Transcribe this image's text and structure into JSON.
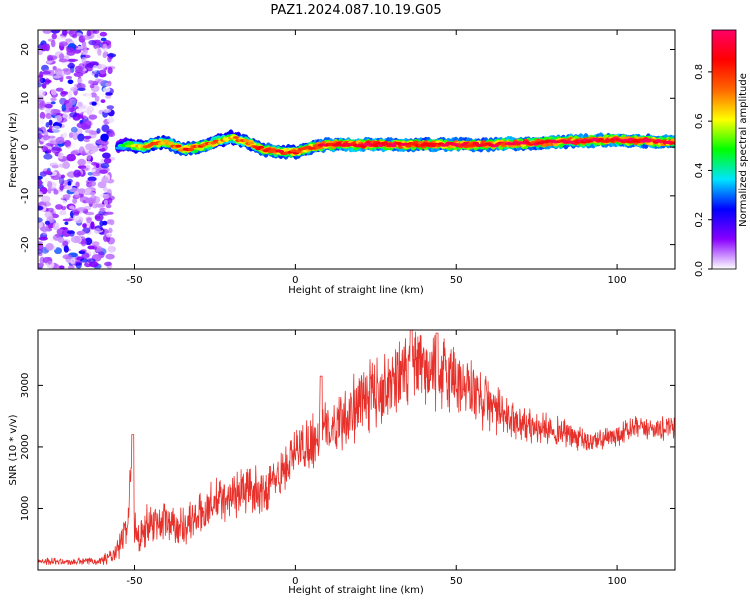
{
  "title": "PAZ1.2024.087.10.19.G05",
  "colorbar": {
    "label": "Normalized spectral amplitude",
    "ticks": [
      "0.0",
      "0.2",
      "0.4",
      "0.6",
      "0.8"
    ],
    "tick_values": [
      0.0,
      0.2,
      0.4,
      0.6,
      0.8
    ],
    "range": [
      0,
      0.97
    ],
    "colormap": [
      "#ffffff",
      "#8800ff",
      "#0000ff",
      "#00e5ff",
      "#00ff00",
      "#ffff00",
      "#ff6600",
      "#ff0000",
      "#ff0066"
    ]
  },
  "chart_data": [
    {
      "type": "heatmap",
      "xlabel": "Height of straight line (km)",
      "ylabel": "Frequency (Hz)",
      "xlim": [
        -80,
        118
      ],
      "ylim": [
        -25,
        24
      ],
      "x_ticks": [
        "-50",
        "0",
        "50",
        "100"
      ],
      "x_tick_values": [
        -50,
        0,
        50,
        100
      ],
      "y_ticks": [
        "-20",
        "-10",
        "0",
        "10",
        "20"
      ],
      "y_tick_values": [
        -20,
        -10,
        0,
        10,
        20
      ],
      "ridge": {
        "x": [
          -55,
          -52,
          -48,
          -45,
          -40,
          -35,
          -30,
          -25,
          -20,
          -15,
          -10,
          -5,
          0,
          5,
          10,
          20,
          40,
          60,
          80,
          100,
          118
        ],
        "y": [
          0,
          0.5,
          0,
          0.5,
          1,
          -0.5,
          0,
          1,
          2,
          1,
          -0.5,
          -1,
          -1,
          0,
          0.5,
          0.5,
          0.5,
          0.5,
          1,
          1.5,
          1
        ],
        "amplitude": [
          0.35,
          0.55,
          0.7,
          0.75,
          0.75,
          0.8,
          0.8,
          0.75,
          0.7,
          0.75,
          0.8,
          0.85,
          0.8,
          0.85,
          0.9,
          0.95,
          0.9,
          0.9,
          0.9,
          0.95,
          0.9
        ]
      },
      "noise_region": {
        "x_range": [
          -80,
          -57
        ],
        "y_range": [
          -25,
          24
        ],
        "amplitude": [
          0.1,
          0.3
        ]
      }
    },
    {
      "type": "line",
      "xlabel": "Height of straight line (km)",
      "ylabel": "SNR (10 * v/v)",
      "xlim": [
        -80,
        118
      ],
      "ylim": [
        0,
        3900
      ],
      "color": "#e8302a",
      "x_ticks": [
        "-50",
        "0",
        "50",
        "100"
      ],
      "x_tick_values": [
        -50,
        0,
        50,
        100
      ],
      "y_ticks": [
        "1000",
        "2000",
        "3000"
      ],
      "y_tick_values": [
        1000,
        2000,
        3000
      ],
      "series": [
        {
          "x": [
            -80,
            -70,
            -60,
            -56,
            -54,
            -52,
            -51,
            -50,
            -48,
            -45,
            -40,
            -35,
            -30,
            -25,
            -20,
            -15,
            -10,
            -5,
            0,
            5,
            10,
            15,
            20,
            25,
            30,
            35,
            40,
            45,
            50,
            55,
            60,
            65,
            70,
            75,
            80,
            85,
            90,
            95,
            100,
            105,
            110,
            118
          ],
          "y": [
            150,
            130,
            160,
            250,
            450,
            800,
            1800,
            700,
            600,
            800,
            800,
            700,
            900,
            1100,
            1200,
            1300,
            1300,
            1500,
            1900,
            2100,
            2300,
            2500,
            2700,
            2900,
            3100,
            3200,
            3250,
            3200,
            3100,
            2900,
            2700,
            2500,
            2400,
            2300,
            2300,
            2200,
            2100,
            2100,
            2200,
            2300,
            2300,
            2300
          ],
          "amplitude": [
            60,
            60,
            80,
            150,
            250,
            300,
            300,
            350,
            350,
            350,
            350,
            350,
            350,
            400,
            400,
            400,
            400,
            400,
            400,
            500,
            500,
            550,
            600,
            600,
            650,
            650,
            650,
            650,
            650,
            600,
            500,
            350,
            300,
            280,
            250,
            230,
            200,
            200,
            200,
            200,
            200,
            200
          ]
        }
      ],
      "spikes": [
        {
          "x": -50.5,
          "y": 2200
        },
        {
          "x": 8,
          "y": 3150
        },
        {
          "x": 36,
          "y": 3900
        },
        {
          "x": 44,
          "y": 3850
        }
      ]
    }
  ]
}
